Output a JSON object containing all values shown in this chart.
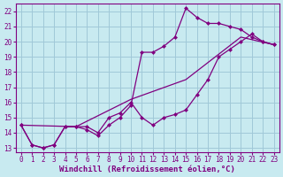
{
  "xlabel": "Windchill (Refroidissement éolien,°C)",
  "bg_color": "#c8eaf0",
  "grid_color": "#a0c8d8",
  "line_color": "#800080",
  "xlim": [
    -0.5,
    23.5
  ],
  "ylim": [
    12.7,
    22.5
  ],
  "xticks": [
    0,
    1,
    2,
    3,
    4,
    5,
    6,
    7,
    8,
    9,
    10,
    11,
    12,
    13,
    14,
    15,
    16,
    17,
    18,
    19,
    20,
    21,
    22,
    23
  ],
  "yticks": [
    13,
    14,
    15,
    16,
    17,
    18,
    19,
    20,
    21,
    22
  ],
  "marker": "D",
  "markersize": 2.5,
  "linewidth": 0.9,
  "xlabel_fontsize": 6.5,
  "tick_fontsize": 5.5,
  "line1_x": [
    0,
    1,
    2,
    3,
    4,
    5,
    6,
    7,
    8,
    9,
    10,
    11,
    12,
    13,
    14,
    15,
    16,
    17,
    18,
    19,
    20,
    21,
    22,
    23
  ],
  "line1_y": [
    14.5,
    13.2,
    13.0,
    13.2,
    14.4,
    14.4,
    14.2,
    13.8,
    14.5,
    15.0,
    15.8,
    19.3,
    19.3,
    19.7,
    20.3,
    22.2,
    21.6,
    21.2,
    21.2,
    21.0,
    20.8,
    20.3,
    20.0,
    19.8
  ],
  "line2_x": [
    0,
    1,
    2,
    3,
    4,
    5,
    6,
    7,
    8,
    9,
    10,
    11,
    12,
    13,
    14,
    15,
    16,
    17,
    18,
    19,
    20,
    21,
    22,
    23
  ],
  "line2_y": [
    14.5,
    13.2,
    13.0,
    13.2,
    14.4,
    14.4,
    14.4,
    14.0,
    15.0,
    15.3,
    16.0,
    15.0,
    14.5,
    15.0,
    15.2,
    15.5,
    16.5,
    17.5,
    19.0,
    19.5,
    20.0,
    20.5,
    20.0,
    19.8
  ],
  "line3_x": [
    0,
    5,
    10,
    15,
    20,
    23
  ],
  "line3_y": [
    14.5,
    14.4,
    16.2,
    17.5,
    20.3,
    19.8
  ]
}
